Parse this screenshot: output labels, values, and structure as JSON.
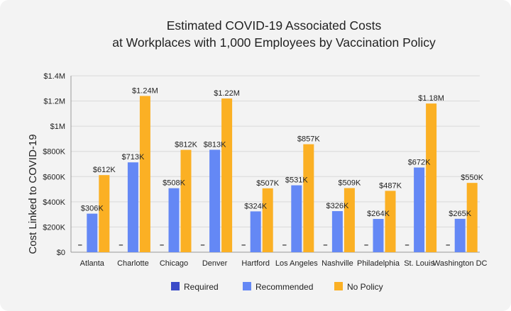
{
  "chart_data": {
    "type": "bar",
    "title": "Estimated COVID-19 Associated Costs",
    "subtitle": "at Workplaces with 1,000 Employees by Vaccination Policy",
    "ylabel": "Cost Linked to COVID-19",
    "xlabel": "",
    "ylim": [
      0,
      1400000
    ],
    "yticks": [
      0,
      200000,
      400000,
      600000,
      800000,
      1000000,
      1200000,
      1400000
    ],
    "ytick_labels": [
      "$0",
      "$200K",
      "$400K",
      "$600K",
      "$800K",
      "$1M",
      "$1.2M",
      "$1.4M"
    ],
    "categories": [
      "Atlanta",
      "Charlotte",
      "Chicago",
      "Denver",
      "Hartford",
      "Los Angeles",
      "Nashville",
      "Philadelphia",
      "St. Louis",
      "Washington DC"
    ],
    "series": [
      {
        "name": "Required",
        "color": "#3b4bc8",
        "values": [
          0,
          0,
          0,
          0,
          0,
          0,
          0,
          0,
          0,
          0
        ],
        "labels": [
          "–",
          "–",
          "–",
          "–",
          "–",
          "–",
          "–",
          "–",
          "–",
          "–"
        ]
      },
      {
        "name": "Recommended",
        "color": "#6488f5",
        "values": [
          306000,
          713000,
          508000,
          813000,
          324000,
          531000,
          326000,
          264000,
          672000,
          265000
        ],
        "labels": [
          "$306K",
          "$713K",
          "$508K",
          "$813K",
          "$324K",
          "$531K",
          "$326K",
          "$264K",
          "$672K",
          "$265K"
        ]
      },
      {
        "name": "No Policy",
        "color": "#fbb024",
        "values": [
          612000,
          1240000,
          812000,
          1220000,
          507000,
          857000,
          509000,
          487000,
          1180000,
          550000
        ],
        "labels": [
          "$612K",
          "$1.24M",
          "$812K",
          "$1.22M",
          "$507K",
          "$857K",
          "$509K",
          "$487K",
          "$1.18M",
          "$550K"
        ]
      }
    ],
    "legend_position": "bottom",
    "grid": true
  }
}
